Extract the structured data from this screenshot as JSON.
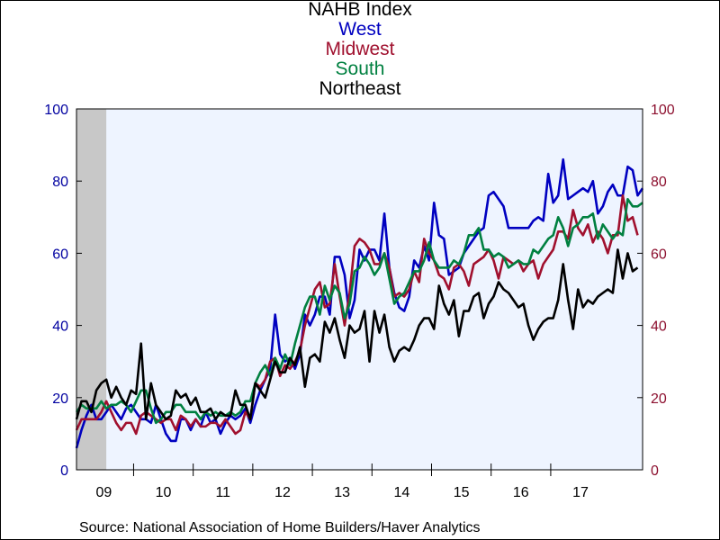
{
  "chart_data": {
    "type": "line",
    "title": "NAHB Index",
    "legend_labels": [
      "West",
      "Midwest",
      "South",
      "Northeast"
    ],
    "ylim": [
      0,
      100
    ],
    "yticks": [
      0,
      20,
      40,
      60,
      80,
      100
    ],
    "y_left_color": "#0000a0",
    "y_right_color": "#8c0f2e",
    "plot_background": "#eef4ff",
    "recession_shading": {
      "start": "2009-01",
      "end": "2009-06",
      "color": "#c8c8c8"
    },
    "x_start": "2009-01",
    "x_tick_labels": [
      "09",
      "10",
      "11",
      "12",
      "13",
      "14",
      "15",
      "16",
      "17"
    ],
    "series": [
      {
        "name": "West",
        "color": "#0000c0",
        "values": [
          6,
          11,
          15,
          18,
          14,
          14,
          16,
          18,
          16,
          14,
          17,
          18,
          16,
          14,
          14,
          13,
          18,
          14,
          10,
          8,
          8,
          14,
          14,
          11,
          14,
          12,
          16,
          13,
          14,
          10,
          13,
          15,
          14,
          15,
          17,
          13,
          18,
          22,
          25,
          28,
          43,
          32,
          30,
          31,
          28,
          32,
          43,
          40,
          43,
          48,
          48,
          43,
          59,
          59,
          54,
          42,
          47,
          61,
          58,
          61,
          61,
          58,
          71,
          56,
          49,
          45,
          44,
          48,
          58,
          56,
          62,
          58,
          74,
          65,
          64,
          54,
          55,
          56,
          60,
          62,
          64,
          66,
          67,
          76,
          77,
          75,
          73,
          67,
          67,
          67,
          67,
          67,
          69,
          70,
          69,
          82,
          74,
          76,
          86,
          75,
          76,
          77,
          78,
          77,
          80,
          71,
          73,
          77,
          79,
          76,
          76,
          84,
          83,
          76,
          78
        ]
      },
      {
        "name": "Midwest",
        "color": "#a0102e",
        "values": [
          11,
          14,
          14,
          14,
          14,
          16,
          19,
          16,
          13,
          11,
          13,
          13,
          10,
          15,
          16,
          15,
          14,
          13,
          14,
          14,
          11,
          15,
          14,
          12,
          14,
          12,
          12,
          13,
          13,
          12,
          14,
          12,
          10,
          11,
          16,
          14,
          24,
          23,
          25,
          30,
          31,
          26,
          29,
          28,
          30,
          33,
          40,
          45,
          50,
          52,
          45,
          46,
          57,
          48,
          40,
          49,
          62,
          64,
          63,
          61,
          57,
          57,
          60,
          56,
          48,
          49,
          48,
          50,
          55,
          52,
          64,
          60,
          58,
          54,
          53,
          50,
          56,
          57,
          55,
          51,
          57,
          58,
          59,
          61,
          58,
          53,
          59,
          58,
          57,
          58,
          55,
          57,
          58,
          53,
          57,
          59,
          61,
          66,
          66,
          64,
          72,
          67,
          65,
          68,
          63,
          66,
          64,
          60,
          65,
          65,
          76,
          69,
          70,
          65
        ]
      },
      {
        "name": "South",
        "color": "#008040",
        "values": [
          16,
          18,
          17,
          17,
          17,
          19,
          17,
          18,
          18,
          19,
          18,
          16,
          19,
          22,
          22,
          17,
          13,
          14,
          16,
          16,
          18,
          18,
          16,
          16,
          16,
          14,
          16,
          15,
          16,
          15,
          15,
          16,
          15,
          16,
          19,
          19,
          24,
          27,
          29,
          26,
          31,
          28,
          32,
          29,
          35,
          40,
          45,
          48,
          48,
          43,
          51,
          47,
          51,
          49,
          42,
          46,
          55,
          56,
          59,
          57,
          54,
          56,
          60,
          53,
          46,
          48,
          49,
          52,
          55,
          55,
          58,
          63,
          58,
          56,
          56,
          56,
          58,
          57,
          60,
          65,
          65,
          67,
          61,
          61,
          59,
          60,
          59,
          56,
          57,
          58,
          57,
          57,
          61,
          60,
          62,
          64,
          65,
          70,
          67,
          62,
          67,
          68,
          70,
          70,
          71,
          64,
          68,
          66,
          64,
          66,
          65,
          75,
          73,
          73,
          74
        ]
      },
      {
        "name": "Northeast",
        "color": "#000000",
        "values": [
          14,
          19,
          19,
          16,
          22,
          24,
          25,
          20,
          23,
          20,
          18,
          22,
          21,
          35,
          14,
          24,
          18,
          16,
          14,
          15,
          22,
          20,
          21,
          18,
          20,
          16,
          16,
          17,
          14,
          16,
          15,
          15,
          22,
          18,
          18,
          14,
          24,
          22,
          20,
          25,
          30,
          27,
          27,
          31,
          29,
          34,
          23,
          31,
          32,
          30,
          41,
          38,
          42,
          36,
          31,
          40,
          38,
          39,
          44,
          30,
          44,
          38,
          43,
          34,
          30,
          33,
          34,
          33,
          36,
          40,
          42,
          42,
          39,
          51,
          46,
          43,
          47,
          37,
          44,
          44,
          48,
          49,
          42,
          46,
          48,
          52,
          50,
          49,
          47,
          45,
          46,
          40,
          36,
          39,
          41,
          42,
          42,
          47,
          57,
          47,
          39,
          50,
          45,
          47,
          46,
          48,
          49,
          50,
          49,
          61,
          53,
          60,
          55,
          56
        ]
      }
    ],
    "source": "Source:  National Association of Home Builders/Haver Analytics"
  }
}
